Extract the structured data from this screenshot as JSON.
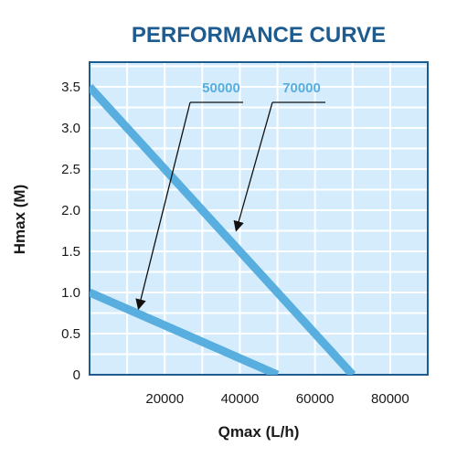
{
  "chart_data": {
    "type": "line",
    "title": "PERFORMANCE CURVE",
    "xlabel": "Qmax (L/h)",
    "ylabel": "Hmax (M)",
    "xlim": [
      0,
      90000
    ],
    "ylim": [
      0,
      3.8
    ],
    "x_ticks": [
      20000,
      40000,
      60000,
      80000
    ],
    "x_tick_labels": [
      "20000",
      "40000",
      "60000",
      "80000"
    ],
    "y_ticks": [
      0,
      0.5,
      1.0,
      1.5,
      2.0,
      2.5,
      3.0,
      3.5
    ],
    "y_tick_labels": [
      "0",
      "0.5",
      "1.0",
      "1.5",
      "2.0",
      "2.5",
      "3.0",
      "3.5"
    ],
    "grid": true,
    "legend": "top-center",
    "series": [
      {
        "name": "50000",
        "x": [
          0,
          50000
        ],
        "y": [
          1.0,
          0
        ]
      },
      {
        "name": "70000",
        "x": [
          0,
          70000
        ],
        "y": [
          3.5,
          0
        ]
      }
    ],
    "annotations": [
      {
        "label": "50000",
        "points_to": {
          "x": 13000,
          "y": 0.8
        }
      },
      {
        "label": "70000",
        "points_to": {
          "x": 39000,
          "y": 1.75
        }
      }
    ],
    "colors": {
      "title": "#1e5c8f",
      "plot_background": "#d4ecfb",
      "plot_border": "#1e5c8f",
      "grid": "#ffffff",
      "series_line": "#57aedf",
      "legend_text": "#57aedf",
      "arrow": "#111111"
    }
  }
}
